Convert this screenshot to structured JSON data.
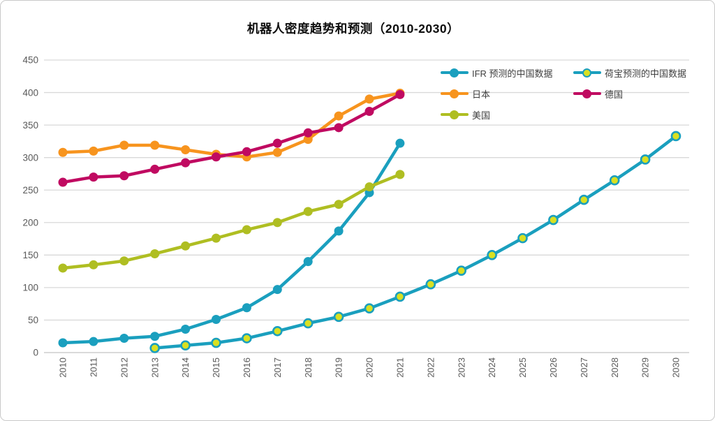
{
  "chart_data": {
    "type": "line",
    "title": "机器人密度趋势和预测（2010-2030）",
    "categories": [
      "2010",
      "2011",
      "2012",
      "2013",
      "2014",
      "2015",
      "2016",
      "2017",
      "2018",
      "2019",
      "2020",
      "2021",
      "2022",
      "2023",
      "2024",
      "2025",
      "2026",
      "2027",
      "2028",
      "2029",
      "2030"
    ],
    "xlabel": "",
    "ylabel": "",
    "ylim": [
      0,
      450
    ],
    "ytick_step": 50,
    "grid": "horizontal",
    "legend_position": "top-right-inside",
    "gridline_color": "#d9d9d9",
    "axis_line_color": "#c3c3c3",
    "axis_text_color": "#595959",
    "series": [
      {
        "name": "IFR 预测的中国数据",
        "color": "#1A9FBE",
        "marker_color": "#1A9FBE",
        "values": [
          15,
          17,
          22,
          25,
          36,
          51,
          69,
          97,
          140,
          187,
          246,
          322,
          null,
          null,
          null,
          null,
          null,
          null,
          null,
          null,
          null
        ]
      },
      {
        "name": "荷宝预测的中国数据",
        "color": "#1A9FBE",
        "marker_color": "#D9E021",
        "marker_stroke": "#1A9FBE",
        "values": [
          null,
          null,
          null,
          7,
          11,
          15,
          22,
          33,
          45,
          55,
          68,
          86,
          105,
          126,
          150,
          176,
          204,
          235,
          265,
          297,
          333
        ]
      },
      {
        "name": "日本",
        "color": "#F7941E",
        "marker_color": "#F7941E",
        "values": [
          308,
          310,
          319,
          319,
          312,
          305,
          301,
          308,
          328,
          364,
          390,
          399,
          null,
          null,
          null,
          null,
          null,
          null,
          null,
          null,
          null
        ]
      },
      {
        "name": "德国",
        "color": "#C00A61",
        "marker_color": "#C00A61",
        "values": [
          262,
          270,
          272,
          282,
          292,
          301,
          309,
          322,
          338,
          346,
          371,
          397,
          null,
          null,
          null,
          null,
          null,
          null,
          null,
          null,
          null
        ]
      },
      {
        "name": "美国",
        "color": "#AFBE22",
        "marker_color": "#AFBE22",
        "values": [
          130,
          135,
          141,
          152,
          164,
          176,
          189,
          200,
          217,
          228,
          255,
          274,
          null,
          null,
          null,
          null,
          null,
          null,
          null,
          null,
          null
        ]
      }
    ]
  }
}
